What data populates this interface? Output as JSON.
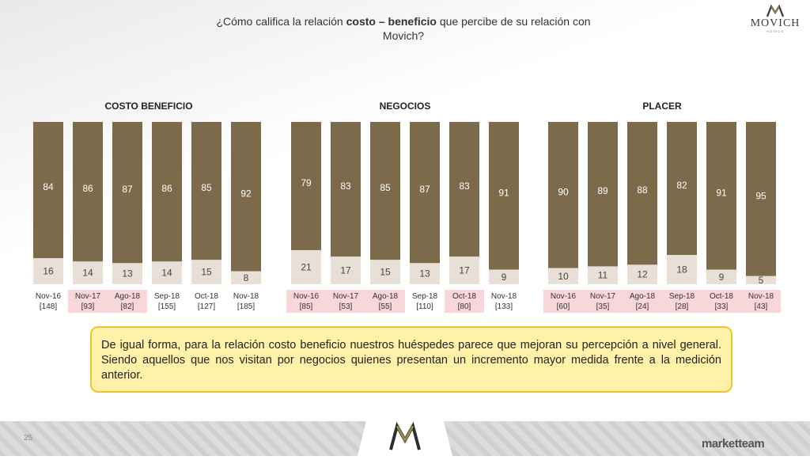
{
  "title": {
    "prefix": "¿Cómo califica la relación ",
    "bold": "costo – beneficio",
    "suffix": " que percibe de su relación con Movich?"
  },
  "logo": {
    "name": "MOVICH",
    "sub": "HOTELS"
  },
  "colors": {
    "top": "#7b6b4a",
    "bottom": "#e8e0d6",
    "highlight": "#f8d6da",
    "note_bg": "#fff1a8",
    "note_border": "#f3c230"
  },
  "chart_data": [
    {
      "type": "bar",
      "title": "COSTO BENEFICIO",
      "categories": [
        "Nov-16",
        "Nov-17",
        "Ago-18",
        "Sep-18",
        "Oct-18",
        "Nov-18"
      ],
      "bases": [
        "[148]",
        "[93]",
        "[82]",
        "[155]",
        "[127]",
        "[185]"
      ],
      "highlighted": [
        false,
        true,
        true,
        false,
        false,
        false
      ],
      "series": [
        {
          "values": [
            84,
            86,
            87,
            86,
            85,
            92
          ]
        },
        {
          "values": [
            16,
            14,
            13,
            14,
            15,
            8
          ]
        }
      ],
      "ylim": [
        0,
        100
      ]
    },
    {
      "type": "bar",
      "title": "NEGOCIOS",
      "categories": [
        "Nov-16",
        "Nov-17",
        "Ago-18",
        "Sep-18",
        "Oct-18",
        "Nov-18"
      ],
      "bases": [
        "[85]",
        "[53]",
        "[55]",
        "[110]",
        "[80]",
        "[133]"
      ],
      "highlighted": [
        true,
        true,
        true,
        false,
        true,
        false
      ],
      "series": [
        {
          "values": [
            79,
            83,
            85,
            87,
            83,
            91
          ]
        },
        {
          "values": [
            21,
            17,
            15,
            13,
            17,
            9
          ]
        }
      ],
      "ylim": [
        0,
        100
      ]
    },
    {
      "type": "bar",
      "title": "PLACER",
      "categories": [
        "Nov-16",
        "Nov-17",
        "Ago-18",
        "Sep-18",
        "Oct-18",
        "Nov-18"
      ],
      "bases": [
        "[60]",
        "[35]",
        "[24]",
        "[28]",
        "[33]",
        "[43]"
      ],
      "highlighted": [
        true,
        true,
        true,
        true,
        true,
        true
      ],
      "series": [
        {
          "values": [
            90,
            89,
            88,
            82,
            91,
            95
          ]
        },
        {
          "values": [
            10,
            11,
            12,
            18,
            9,
            5
          ]
        }
      ],
      "ylim": [
        0,
        100
      ]
    }
  ],
  "note": "De igual forma, para la relación costo beneficio nuestros huéspedes parece que mejoran su percepción a nivel general. Siendo aquellos que nos visitan por negocios quienes presentan un incremento mayor medida frente a la medición anterior.",
  "footer": {
    "page": "25",
    "brand": "marketteam"
  }
}
